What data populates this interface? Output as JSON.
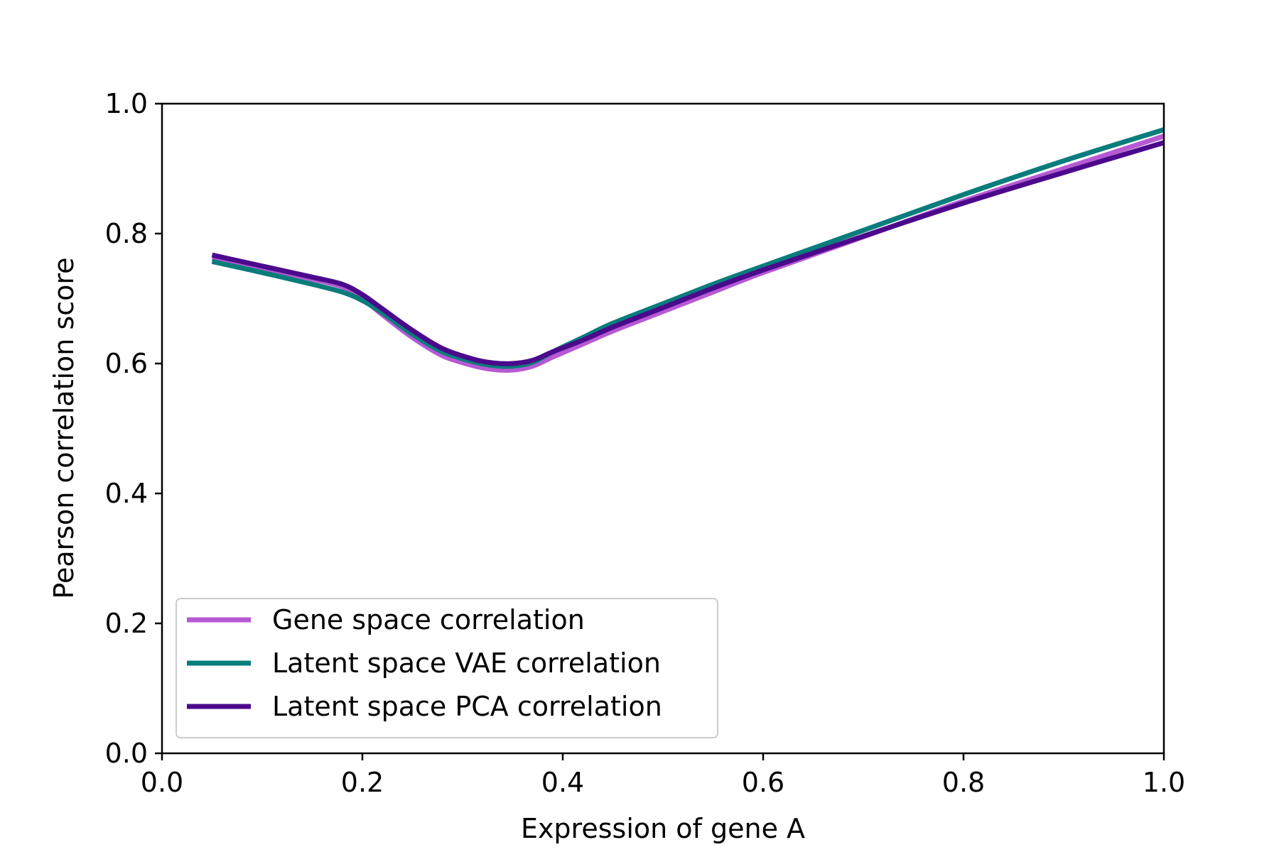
{
  "chart_data": {
    "type": "line",
    "title": "",
    "xlabel": "Expression of gene A",
    "ylabel": "Pearson correlation score",
    "xlim": [
      0.0,
      1.0
    ],
    "ylim": [
      0.0,
      1.0
    ],
    "xticks": [
      "0.0",
      "0.2",
      "0.4",
      "0.6",
      "0.8",
      "1.0"
    ],
    "yticks": [
      "0.0",
      "0.2",
      "0.4",
      "0.6",
      "0.8",
      "1.0"
    ],
    "grid": false,
    "legend": {
      "position": "lower-left"
    },
    "series": [
      {
        "name": "Gene space correlation",
        "color": "#b659d3",
        "points": [
          [
            0.05,
            0.762
          ],
          [
            0.1,
            0.747
          ],
          [
            0.15,
            0.73
          ],
          [
            0.18,
            0.718
          ],
          [
            0.2,
            0.7
          ],
          [
            0.22,
            0.675
          ],
          [
            0.25,
            0.64
          ],
          [
            0.28,
            0.612
          ],
          [
            0.31,
            0.597
          ],
          [
            0.33,
            0.591
          ],
          [
            0.35,
            0.59
          ],
          [
            0.37,
            0.596
          ],
          [
            0.39,
            0.61
          ],
          [
            0.42,
            0.63
          ],
          [
            0.45,
            0.65
          ],
          [
            0.5,
            0.68
          ],
          [
            0.55,
            0.71
          ],
          [
            0.6,
            0.74
          ],
          [
            0.7,
            0.795
          ],
          [
            0.8,
            0.85
          ],
          [
            0.9,
            0.9
          ],
          [
            1.0,
            0.95
          ]
        ]
      },
      {
        "name": "Latent space VAE correlation",
        "color": "#0a7c7c",
        "points": [
          [
            0.05,
            0.757
          ],
          [
            0.1,
            0.74
          ],
          [
            0.15,
            0.722
          ],
          [
            0.18,
            0.71
          ],
          [
            0.2,
            0.697
          ],
          [
            0.22,
            0.678
          ],
          [
            0.25,
            0.645
          ],
          [
            0.28,
            0.618
          ],
          [
            0.31,
            0.603
          ],
          [
            0.33,
            0.597
          ],
          [
            0.35,
            0.596
          ],
          [
            0.37,
            0.602
          ],
          [
            0.39,
            0.618
          ],
          [
            0.42,
            0.64
          ],
          [
            0.45,
            0.662
          ],
          [
            0.5,
            0.692
          ],
          [
            0.55,
            0.722
          ],
          [
            0.6,
            0.75
          ],
          [
            0.7,
            0.805
          ],
          [
            0.8,
            0.86
          ],
          [
            0.9,
            0.912
          ],
          [
            1.0,
            0.96
          ]
        ]
      },
      {
        "name": "Latent space PCA correlation",
        "color": "#4b0a8c",
        "points": [
          [
            0.05,
            0.767
          ],
          [
            0.1,
            0.75
          ],
          [
            0.15,
            0.733
          ],
          [
            0.18,
            0.722
          ],
          [
            0.2,
            0.706
          ],
          [
            0.22,
            0.684
          ],
          [
            0.25,
            0.651
          ],
          [
            0.28,
            0.623
          ],
          [
            0.31,
            0.607
          ],
          [
            0.33,
            0.601
          ],
          [
            0.35,
            0.6
          ],
          [
            0.37,
            0.605
          ],
          [
            0.39,
            0.618
          ],
          [
            0.42,
            0.636
          ],
          [
            0.45,
            0.656
          ],
          [
            0.5,
            0.686
          ],
          [
            0.55,
            0.716
          ],
          [
            0.6,
            0.744
          ],
          [
            0.7,
            0.796
          ],
          [
            0.8,
            0.847
          ],
          [
            0.9,
            0.894
          ],
          [
            1.0,
            0.94
          ]
        ]
      }
    ]
  }
}
